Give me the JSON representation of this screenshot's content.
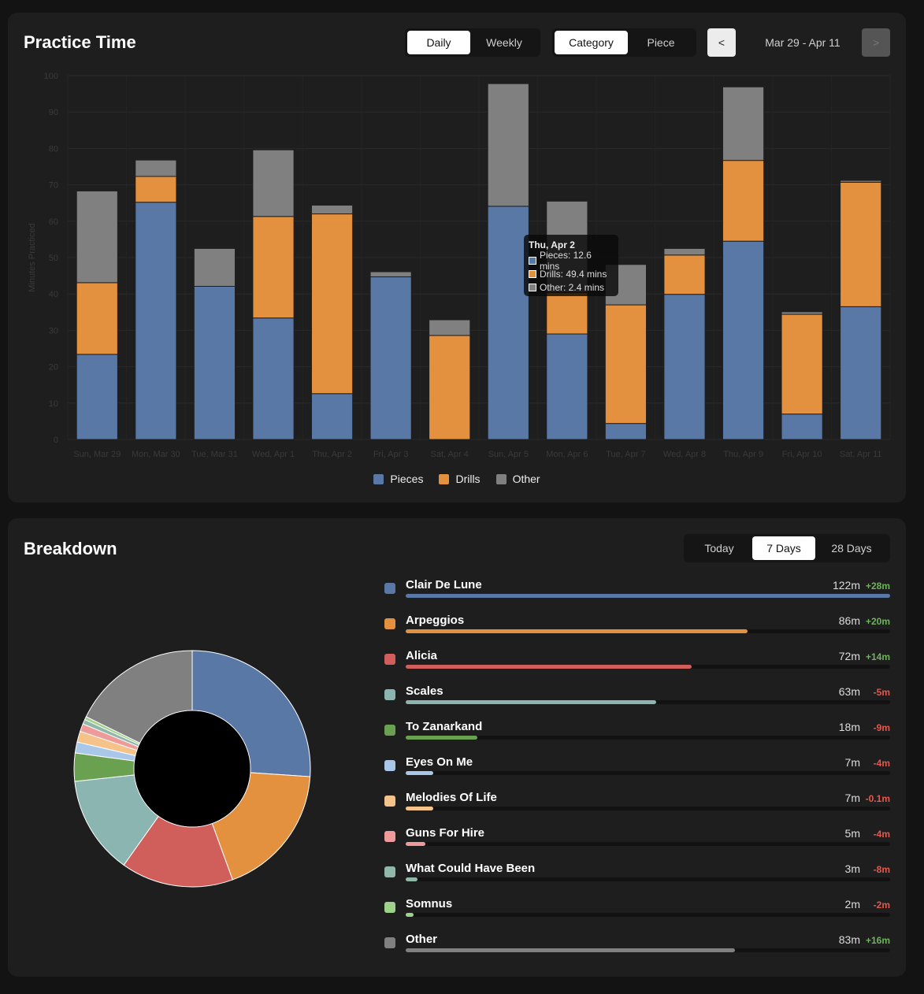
{
  "practice": {
    "title": "Practice Time",
    "period_tabs": [
      {
        "label": "Daily",
        "active": true
      },
      {
        "label": "Weekly",
        "active": false
      }
    ],
    "group_tabs": [
      {
        "label": "Category",
        "active": true
      },
      {
        "label": "Piece",
        "active": false
      }
    ],
    "prev_label": "<",
    "next_label": ">",
    "date_range": "Mar 29 - Apr 11",
    "tooltip": {
      "title": "Thu, Apr 2",
      "rows": [
        {
          "text": "Pieces: 12.6 mins",
          "color": "#5a78a6"
        },
        {
          "text": "Drills: 49.4 mins",
          "color": "#e3903f"
        },
        {
          "text": "Other: 2.4 mins",
          "color": "#808080"
        }
      ]
    }
  },
  "chart_data": {
    "type": "bar",
    "stacked": true,
    "ylabel": "Minutes Practiced",
    "ylim": [
      0,
      100
    ],
    "yticks": [
      0,
      10,
      20,
      30,
      40,
      50,
      60,
      70,
      80,
      90,
      100
    ],
    "categories": [
      "Sun, Mar 29",
      "Mon, Mar 30",
      "Tue, Mar 31",
      "Wed, Apr 1",
      "Thu, Apr 2",
      "Fri, Apr 3",
      "Sat, Apr 4",
      "Sun, Apr 5",
      "Mon, Apr 6",
      "Tue, Apr 7",
      "Wed, Apr 8",
      "Thu, Apr 9",
      "Fri, Apr 10",
      "Sat, Apr 11"
    ],
    "series": [
      {
        "name": "Pieces",
        "color": "#5a78a6",
        "values": [
          23.4,
          65.2,
          42.1,
          33.4,
          12.6,
          44.7,
          0,
          64.1,
          29,
          4.4,
          39.9,
          54.5,
          7,
          36.5
        ]
      },
      {
        "name": "Drills",
        "color": "#e3903f",
        "values": [
          19.7,
          7.1,
          0,
          27.9,
          49.4,
          0,
          28.6,
          0,
          11.4,
          32.6,
          10.8,
          22.2,
          27.4,
          34.2
        ]
      },
      {
        "name": "Other",
        "color": "#808080",
        "values": [
          25.2,
          4.5,
          10.4,
          18.3,
          2.4,
          1.4,
          4.3,
          33.7,
          25.1,
          11.1,
          1.8,
          20.2,
          0.7,
          0.5
        ]
      }
    ],
    "grid": true,
    "legend": "bottom-center"
  },
  "breakdown": {
    "title": "Breakdown",
    "tabs": [
      {
        "label": "Today",
        "active": false
      },
      {
        "label": "7 Days",
        "active": true
      },
      {
        "label": "28 Days",
        "active": false
      }
    ],
    "items": [
      {
        "name": "Clair De Lune",
        "minutes": 122,
        "mins_label": "122m",
        "change": "+28m",
        "trend": "pos",
        "color": "#5a78a6"
      },
      {
        "name": "Arpeggios",
        "minutes": 86,
        "mins_label": "86m",
        "change": "+20m",
        "trend": "pos",
        "color": "#e3903f"
      },
      {
        "name": "Alicia",
        "minutes": 72,
        "mins_label": "72m",
        "change": "+14m",
        "trend": "pos",
        "color": "#d05f5c"
      },
      {
        "name": "Scales",
        "minutes": 63,
        "mins_label": "63m",
        "change": "-5m",
        "trend": "neg",
        "color": "#8ab5b0"
      },
      {
        "name": "To Zanarkand",
        "minutes": 18,
        "mins_label": "18m",
        "change": "-9m",
        "trend": "neg",
        "color": "#69a150"
      },
      {
        "name": "Eyes On Me",
        "minutes": 7,
        "mins_label": "7m",
        "change": "-4m",
        "trend": "neg",
        "color": "#a9c7e8"
      },
      {
        "name": "Melodies Of Life",
        "minutes": 7,
        "mins_label": "7m",
        "change": "-0.1m",
        "trend": "neg",
        "color": "#f5c28a"
      },
      {
        "name": "Guns For Hire",
        "minutes": 5,
        "mins_label": "5m",
        "change": "-4m",
        "trend": "neg",
        "color": "#ee9a9a"
      },
      {
        "name": "What Could Have Been",
        "minutes": 3,
        "mins_label": "3m",
        "change": "-8m",
        "trend": "neg",
        "color": "#8fb8a8"
      },
      {
        "name": "Somnus",
        "minutes": 2,
        "mins_label": "2m",
        "change": "-2m",
        "trend": "neg",
        "color": "#9ed18a"
      },
      {
        "name": "Other",
        "minutes": 83,
        "mins_label": "83m",
        "change": "+16m",
        "trend": "pos",
        "color": "#808080"
      }
    ]
  }
}
